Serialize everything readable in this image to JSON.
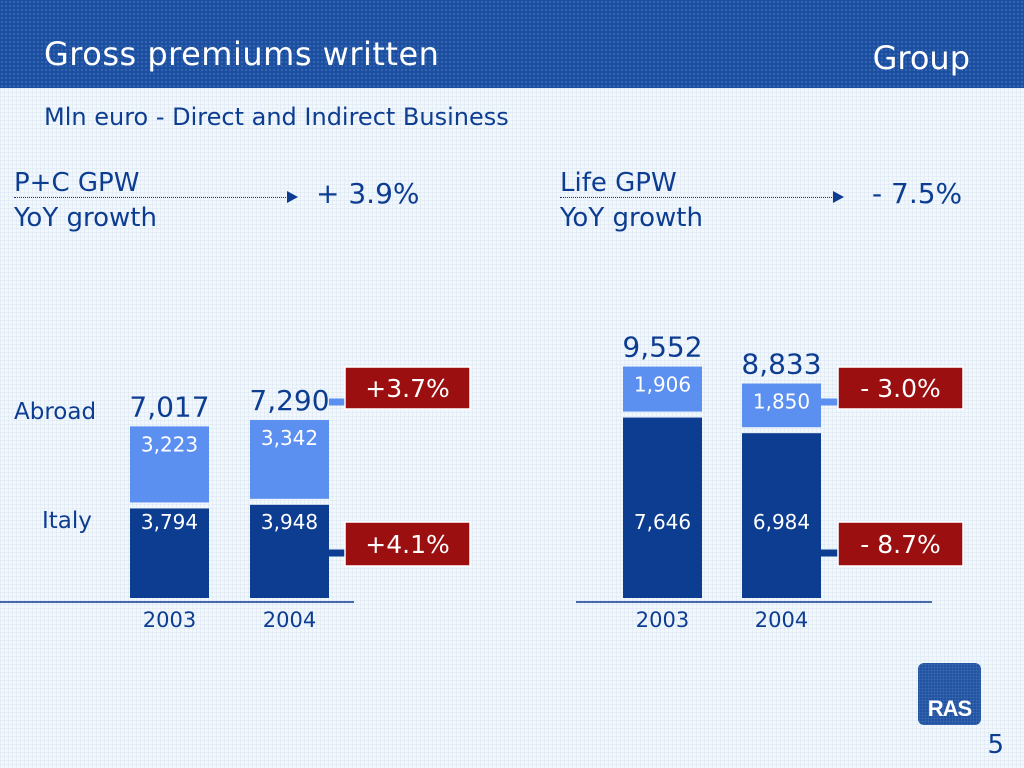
{
  "header": {
    "title": "Gross premiums written",
    "group_label": "Group"
  },
  "subtitle": "Mln euro - Direct and Indirect Business",
  "pc_kpi": {
    "line1": "P+C GPW",
    "line2": "YoY growth",
    "value": "+ 3.9%"
  },
  "life_kpi": {
    "line1": "Life GPW",
    "line2": "YoY growth",
    "value": "- 7.5%"
  },
  "page_number": "5",
  "logo_text": "RAS",
  "colors": {
    "dark_blue": "#0d3d91",
    "light_blue": "#5b8ff0",
    "growth_box": "#9b0f10",
    "header": "#1b4fa1"
  },
  "chart_data": [
    {
      "type": "bar",
      "stacked": true,
      "categories": [
        "2003",
        "2004"
      ],
      "series": [
        {
          "name": "Italy",
          "values": [
            3794,
            3948
          ],
          "labels": [
            "3,794",
            "3,948"
          ],
          "growth": "+4.1%"
        },
        {
          "name": "Abroad",
          "values": [
            3223,
            3342
          ],
          "labels": [
            "3,223",
            "3,342"
          ],
          "growth": "+3.7%"
        }
      ],
      "totals": [
        7017,
        7290
      ],
      "total_labels": [
        "7,017",
        "7,290"
      ]
    },
    {
      "type": "bar",
      "stacked": true,
      "categories": [
        "2003",
        "2004"
      ],
      "series": [
        {
          "name": "Italy",
          "values": [
            7646,
            6984
          ],
          "labels": [
            "7,646",
            "6,984"
          ],
          "growth": "- 8.7%"
        },
        {
          "name": "Abroad",
          "values": [
            1906,
            1850
          ],
          "labels": [
            "1,906",
            "1,850"
          ],
          "growth": "- 3.0%"
        }
      ],
      "totals": [
        9552,
        8833
      ],
      "total_labels": [
        "9,552",
        "8,833"
      ]
    }
  ]
}
